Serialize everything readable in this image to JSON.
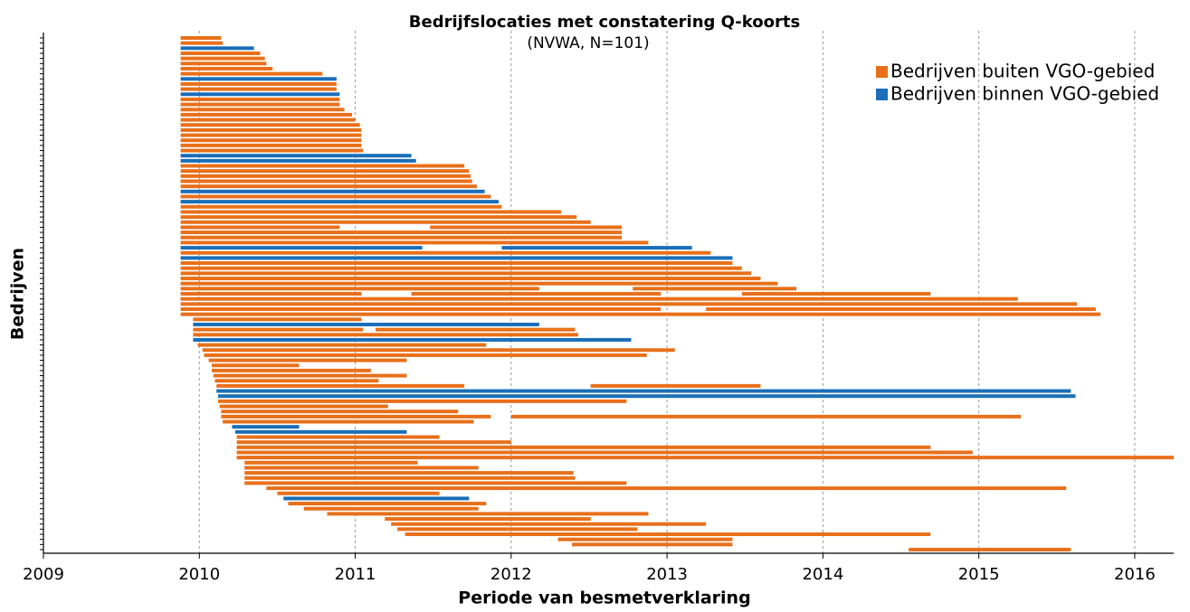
{
  "chart_data": {
    "type": "gantt",
    "title": "Bedrijfslocaties met constatering Q-koorts",
    "subtitle": "(NVWA, N=101)",
    "x_label": "Periode van besmetverklaring",
    "y_label": "Bedrijven",
    "xlim": [
      2009,
      2016.25
    ],
    "xticks": [
      2009,
      2010,
      2011,
      2012,
      2013,
      2014,
      2015,
      2016
    ],
    "grid": true,
    "legend": "upper right",
    "series": [
      {
        "name": "Bedrijven buiten VGO-gebied",
        "color": "#e8701a"
      },
      {
        "name": "Bedrijven binnen VGO-gebied",
        "color": "#1a6eb8"
      }
    ],
    "rows": [
      {
        "group": 0,
        "segments": [
          [
            2009.88,
            2010.14
          ]
        ]
      },
      {
        "group": 0,
        "segments": [
          [
            2009.88,
            2010.15
          ]
        ]
      },
      {
        "group": 1,
        "segments": [
          [
            2009.88,
            2010.35
          ]
        ]
      },
      {
        "group": 0,
        "segments": [
          [
            2009.88,
            2010.39
          ]
        ]
      },
      {
        "group": 0,
        "segments": [
          [
            2009.88,
            2010.42
          ]
        ]
      },
      {
        "group": 0,
        "segments": [
          [
            2009.88,
            2010.43
          ]
        ]
      },
      {
        "group": 0,
        "segments": [
          [
            2009.88,
            2010.47
          ]
        ]
      },
      {
        "group": 0,
        "segments": [
          [
            2009.88,
            2010.79
          ]
        ]
      },
      {
        "group": 1,
        "segments": [
          [
            2009.88,
            2010.88
          ]
        ]
      },
      {
        "group": 0,
        "segments": [
          [
            2009.88,
            2010.88
          ]
        ]
      },
      {
        "group": 0,
        "segments": [
          [
            2009.88,
            2010.88
          ]
        ]
      },
      {
        "group": 1,
        "segments": [
          [
            2009.88,
            2010.9
          ]
        ]
      },
      {
        "group": 0,
        "segments": [
          [
            2009.88,
            2010.9
          ]
        ]
      },
      {
        "group": 0,
        "segments": [
          [
            2009.88,
            2010.9
          ]
        ]
      },
      {
        "group": 0,
        "segments": [
          [
            2009.88,
            2010.93
          ]
        ]
      },
      {
        "group": 0,
        "segments": [
          [
            2009.88,
            2010.98
          ]
        ]
      },
      {
        "group": 0,
        "segments": [
          [
            2009.88,
            2011.0
          ]
        ]
      },
      {
        "group": 0,
        "segments": [
          [
            2009.88,
            2011.03
          ]
        ]
      },
      {
        "group": 0,
        "segments": [
          [
            2009.88,
            2011.04
          ]
        ]
      },
      {
        "group": 0,
        "segments": [
          [
            2009.88,
            2011.04
          ]
        ]
      },
      {
        "group": 0,
        "segments": [
          [
            2009.88,
            2011.04
          ]
        ]
      },
      {
        "group": 0,
        "segments": [
          [
            2009.88,
            2011.04
          ]
        ]
      },
      {
        "group": 0,
        "segments": [
          [
            2009.88,
            2011.05
          ]
        ]
      },
      {
        "group": 1,
        "segments": [
          [
            2009.88,
            2011.36
          ]
        ]
      },
      {
        "group": 1,
        "segments": [
          [
            2009.88,
            2011.39
          ]
        ]
      },
      {
        "group": 0,
        "segments": [
          [
            2009.88,
            2011.7
          ]
        ]
      },
      {
        "group": 0,
        "segments": [
          [
            2009.88,
            2011.73
          ]
        ]
      },
      {
        "group": 0,
        "segments": [
          [
            2009.88,
            2011.74
          ]
        ]
      },
      {
        "group": 0,
        "segments": [
          [
            2009.88,
            2011.75
          ]
        ]
      },
      {
        "group": 0,
        "segments": [
          [
            2009.88,
            2011.78
          ]
        ]
      },
      {
        "group": 1,
        "segments": [
          [
            2009.88,
            2011.83
          ]
        ]
      },
      {
        "group": 0,
        "segments": [
          [
            2009.88,
            2011.87
          ]
        ]
      },
      {
        "group": 1,
        "segments": [
          [
            2009.88,
            2011.92
          ]
        ]
      },
      {
        "group": 0,
        "segments": [
          [
            2009.88,
            2011.94
          ]
        ]
      },
      {
        "group": 0,
        "segments": [
          [
            2009.88,
            2012.32
          ]
        ]
      },
      {
        "group": 0,
        "segments": [
          [
            2009.88,
            2012.42
          ]
        ]
      },
      {
        "group": 0,
        "segments": [
          [
            2009.88,
            2012.51
          ]
        ]
      },
      {
        "group": 0,
        "segments": [
          [
            2009.88,
            2010.9
          ],
          [
            2011.48,
            2012.71
          ]
        ]
      },
      {
        "group": 0,
        "segments": [
          [
            2009.88,
            2012.71
          ]
        ]
      },
      {
        "group": 0,
        "segments": [
          [
            2009.88,
            2012.71
          ]
        ]
      },
      {
        "group": 0,
        "segments": [
          [
            2009.88,
            2012.88
          ]
        ]
      },
      {
        "group": 1,
        "segments": [
          [
            2009.88,
            2011.43
          ],
          [
            2011.94,
            2013.16
          ]
        ]
      },
      {
        "group": 0,
        "segments": [
          [
            2009.88,
            2013.28
          ]
        ]
      },
      {
        "group": 1,
        "segments": [
          [
            2009.88,
            2013.42
          ]
        ]
      },
      {
        "group": 0,
        "segments": [
          [
            2009.88,
            2013.42
          ]
        ]
      },
      {
        "group": 0,
        "segments": [
          [
            2009.88,
            2013.48
          ]
        ]
      },
      {
        "group": 0,
        "segments": [
          [
            2009.88,
            2013.54
          ]
        ]
      },
      {
        "group": 0,
        "segments": [
          [
            2009.88,
            2013.6
          ]
        ]
      },
      {
        "group": 0,
        "segments": [
          [
            2009.88,
            2013.71
          ]
        ]
      },
      {
        "group": 0,
        "segments": [
          [
            2009.88,
            2012.18
          ],
          [
            2012.78,
            2013.83
          ]
        ]
      },
      {
        "group": 0,
        "segments": [
          [
            2009.88,
            2011.04
          ],
          [
            2011.36,
            2012.96
          ],
          [
            2013.48,
            2014.69
          ]
        ]
      },
      {
        "group": 0,
        "segments": [
          [
            2009.88,
            2015.25
          ]
        ]
      },
      {
        "group": 0,
        "segments": [
          [
            2009.88,
            2015.63
          ]
        ]
      },
      {
        "group": 0,
        "segments": [
          [
            2009.88,
            2012.96
          ],
          [
            2013.25,
            2015.75
          ]
        ]
      },
      {
        "group": 0,
        "segments": [
          [
            2009.88,
            2015.78
          ]
        ]
      },
      {
        "group": 0,
        "segments": [
          [
            2009.96,
            2011.04
          ]
        ]
      },
      {
        "group": 1,
        "segments": [
          [
            2009.96,
            2012.18
          ]
        ]
      },
      {
        "group": 0,
        "segments": [
          [
            2009.96,
            2011.05
          ],
          [
            2011.13,
            2012.41
          ]
        ]
      },
      {
        "group": 0,
        "segments": [
          [
            2009.96,
            2012.43
          ]
        ]
      },
      {
        "group": 1,
        "segments": [
          [
            2009.96,
            2012.77
          ]
        ]
      },
      {
        "group": 0,
        "segments": [
          [
            2009.99,
            2011.84
          ]
        ]
      },
      {
        "group": 0,
        "segments": [
          [
            2010.02,
            2013.05
          ]
        ]
      },
      {
        "group": 0,
        "segments": [
          [
            2010.03,
            2012.87
          ]
        ]
      },
      {
        "group": 0,
        "segments": [
          [
            2010.06,
            2011.33
          ]
        ]
      },
      {
        "group": 0,
        "segments": [
          [
            2010.08,
            2010.64
          ]
        ]
      },
      {
        "group": 0,
        "segments": [
          [
            2010.08,
            2011.1
          ]
        ]
      },
      {
        "group": 0,
        "segments": [
          [
            2010.09,
            2011.33
          ]
        ]
      },
      {
        "group": 0,
        "segments": [
          [
            2010.1,
            2011.15
          ]
        ]
      },
      {
        "group": 0,
        "segments": [
          [
            2010.11,
            2011.7
          ],
          [
            2012.51,
            2013.6
          ]
        ]
      },
      {
        "group": 1,
        "segments": [
          [
            2010.11,
            2015.59
          ]
        ]
      },
      {
        "group": 1,
        "segments": [
          [
            2010.12,
            2015.62
          ]
        ]
      },
      {
        "group": 0,
        "segments": [
          [
            2010.12,
            2012.74
          ]
        ]
      },
      {
        "group": 0,
        "segments": [
          [
            2010.13,
            2011.21
          ]
        ]
      },
      {
        "group": 0,
        "segments": [
          [
            2010.14,
            2011.66
          ]
        ]
      },
      {
        "group": 0,
        "segments": [
          [
            2010.14,
            2011.87
          ],
          [
            2012.0,
            2015.27
          ]
        ]
      },
      {
        "group": 0,
        "segments": [
          [
            2010.15,
            2011.76
          ]
        ]
      },
      {
        "group": 1,
        "segments": [
          [
            2010.21,
            2010.64
          ]
        ]
      },
      {
        "group": 1,
        "segments": [
          [
            2010.23,
            2011.33
          ]
        ]
      },
      {
        "group": 0,
        "segments": [
          [
            2010.24,
            2011.54
          ]
        ]
      },
      {
        "group": 0,
        "segments": [
          [
            2010.24,
            2012.0
          ]
        ]
      },
      {
        "group": 0,
        "segments": [
          [
            2010.24,
            2014.69
          ]
        ]
      },
      {
        "group": 0,
        "segments": [
          [
            2010.24,
            2014.96
          ]
        ]
      },
      {
        "group": 0,
        "segments": [
          [
            2010.24,
            2016.25
          ]
        ]
      },
      {
        "group": 0,
        "segments": [
          [
            2010.29,
            2011.4
          ]
        ]
      },
      {
        "group": 0,
        "segments": [
          [
            2010.29,
            2011.79
          ]
        ]
      },
      {
        "group": 0,
        "segments": [
          [
            2010.29,
            2012.4
          ]
        ]
      },
      {
        "group": 0,
        "segments": [
          [
            2010.29,
            2012.41
          ]
        ]
      },
      {
        "group": 0,
        "segments": [
          [
            2010.29,
            2012.74
          ]
        ]
      },
      {
        "group": 0,
        "segments": [
          [
            2010.43,
            2015.56
          ]
        ]
      },
      {
        "group": 0,
        "segments": [
          [
            2010.5,
            2011.54
          ]
        ]
      },
      {
        "group": 1,
        "segments": [
          [
            2010.54,
            2011.73
          ]
        ]
      },
      {
        "group": 0,
        "segments": [
          [
            2010.57,
            2011.84
          ]
        ]
      },
      {
        "group": 0,
        "segments": [
          [
            2010.67,
            2011.79
          ]
        ]
      },
      {
        "group": 0,
        "segments": [
          [
            2010.82,
            2012.88
          ]
        ]
      },
      {
        "group": 0,
        "segments": [
          [
            2011.19,
            2012.51
          ]
        ]
      },
      {
        "group": 0,
        "segments": [
          [
            2011.23,
            2013.25
          ]
        ]
      },
      {
        "group": 0,
        "segments": [
          [
            2011.27,
            2012.81
          ]
        ]
      },
      {
        "group": 0,
        "segments": [
          [
            2011.32,
            2014.69
          ]
        ]
      },
      {
        "group": 0,
        "segments": [
          [
            2012.3,
            2013.42
          ]
        ]
      },
      {
        "group": 0,
        "segments": [
          [
            2012.39,
            2013.42
          ]
        ]
      },
      {
        "group": 0,
        "segments": [
          [
            2014.55,
            2015.59
          ]
        ]
      }
    ]
  }
}
